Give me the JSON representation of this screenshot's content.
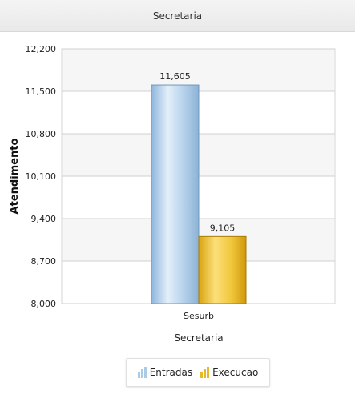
{
  "header": {
    "title": "Secretaria"
  },
  "legend": {
    "items": [
      {
        "label": "Entradas",
        "icon": "bar-chart-icon",
        "color": "#a8cbe8"
      },
      {
        "label": "Execucao",
        "icon": "bar-chart-icon",
        "color": "#e6b92a"
      }
    ]
  },
  "chart_data": {
    "type": "bar",
    "title": "Secretaria",
    "xlabel": "Secretaria",
    "ylabel": "Atendimento",
    "categories": [
      "Sesurb"
    ],
    "series": [
      {
        "name": "Entradas",
        "values": [
          11605
        ],
        "color": "#a8cbe8",
        "edge": "#6f98bd"
      },
      {
        "name": "Execucao",
        "values": [
          9105
        ],
        "color": "#e6b92a",
        "edge": "#a47c08"
      }
    ],
    "ylim": [
      8000,
      12200
    ],
    "yticks": [
      8000,
      8700,
      9400,
      10100,
      10800,
      11500,
      12200
    ],
    "ytick_labels": [
      "8,000",
      "8,700",
      "9,400",
      "10,100",
      "10,800",
      "11,500",
      "12,200"
    ],
    "data_labels": [
      "11,605",
      "9,105"
    ],
    "grid": true,
    "legend_position": "bottom-center"
  }
}
